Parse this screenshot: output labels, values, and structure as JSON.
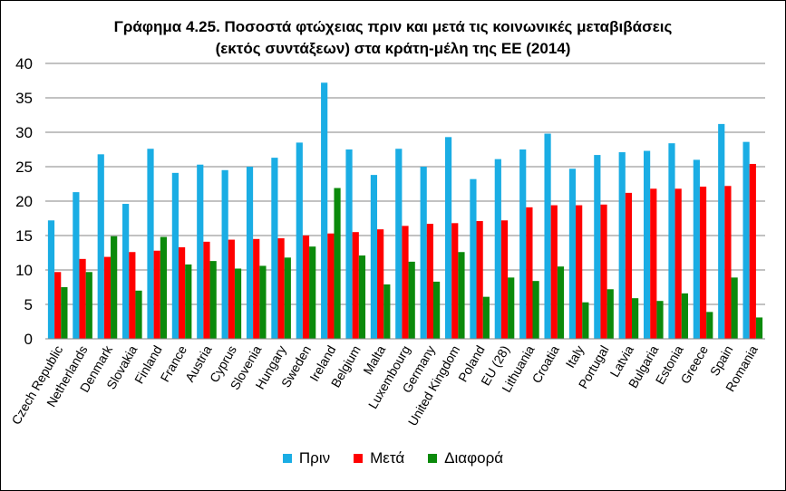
{
  "chart_data": {
    "type": "bar",
    "title_line1": "Γράφημα 4.25.  Ποσοστά φτώχειας πριν και μετά τις κοινωνικές μεταβιβάσεις",
    "title_line2": "(εκτός συντάξεων) στα κράτη-μέλη της ΕΕ (2014)",
    "ylim": [
      0,
      40
    ],
    "yticks": [
      0,
      5,
      10,
      15,
      20,
      25,
      30,
      35,
      40
    ],
    "grid": true,
    "legend_position": "bottom",
    "categories": [
      "Czech Republic",
      "Netherlands",
      "Denmark",
      "Slovakia",
      "Finland",
      "France",
      "Austria",
      "Cyprus",
      "Slovenia",
      "Hungary",
      "Sweden",
      "Ireland",
      "Belgium",
      "Malta",
      "Luxembourg",
      "Germany",
      "United Kingdom",
      "Poland",
      "EU (28)",
      "Lithuania",
      "Croatia",
      "Italy",
      "Portugal",
      "Latvia",
      "Bulgaria",
      "Estonia",
      "Greece",
      "Spain",
      "Romania"
    ],
    "series": [
      {
        "name": "Πριν",
        "color": "#1AADE4",
        "values": [
          17.2,
          21.3,
          26.8,
          19.6,
          27.6,
          24.1,
          25.3,
          24.5,
          25.0,
          26.3,
          28.5,
          37.2,
          27.5,
          23.8,
          27.6,
          25.0,
          29.3,
          23.2,
          26.1,
          27.5,
          29.8,
          24.7,
          26.7,
          27.1,
          27.3,
          28.4,
          26.0,
          31.2,
          28.6
        ]
      },
      {
        "name": "Μετά",
        "color": "#FF0000",
        "values": [
          9.7,
          11.6,
          11.9,
          12.6,
          12.8,
          13.3,
          14.1,
          14.4,
          14.5,
          14.6,
          15.0,
          15.3,
          15.5,
          15.9,
          16.4,
          16.7,
          16.8,
          17.1,
          17.2,
          19.1,
          19.4,
          19.4,
          19.5,
          21.2,
          21.8,
          21.8,
          22.1,
          22.2,
          25.4
        ]
      },
      {
        "name": "Διαφορά",
        "color": "#0B8A0B",
        "values": [
          7.5,
          9.7,
          14.9,
          7.0,
          14.8,
          10.8,
          11.3,
          10.2,
          10.6,
          11.8,
          13.4,
          21.9,
          12.1,
          7.9,
          11.2,
          8.3,
          12.6,
          6.1,
          8.9,
          8.4,
          10.5,
          5.3,
          7.2,
          5.9,
          5.5,
          6.6,
          3.9,
          8.9,
          3.1
        ]
      }
    ]
  }
}
